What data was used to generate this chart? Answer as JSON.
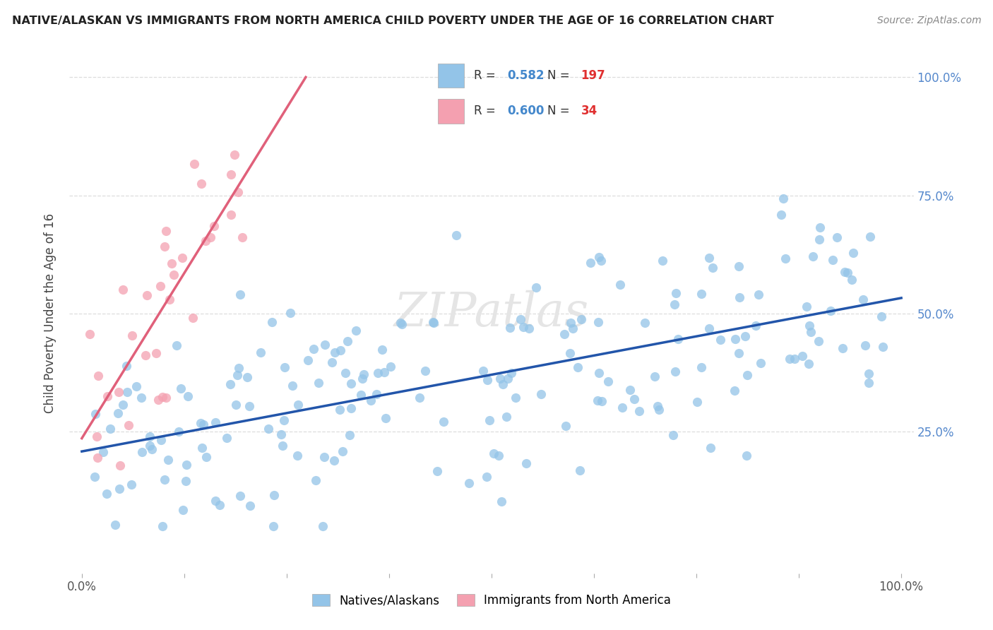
{
  "title": "NATIVE/ALASKAN VS IMMIGRANTS FROM NORTH AMERICA CHILD POVERTY UNDER THE AGE OF 16 CORRELATION CHART",
  "source": "Source: ZipAtlas.com",
  "ylabel": "Child Poverty Under the Age of 16",
  "legend_blue_R": "0.582",
  "legend_blue_N": "197",
  "legend_pink_R": "0.600",
  "legend_pink_N": "34",
  "legend_blue_label": "Natives/Alaskans",
  "legend_pink_label": "Immigrants from North America",
  "blue_scatter_color": "#93C4E8",
  "pink_scatter_color": "#F4A0B0",
  "blue_line_color": "#2255AA",
  "pink_line_color": "#E0607A",
  "grid_color": "#DDDDDD",
  "watermark_text": "ZIPatlas",
  "watermark_color": "#E5E5E5",
  "right_axis_color": "#5588CC",
  "title_color": "#222222",
  "source_color": "#888888",
  "ylabel_color": "#444444",
  "x_min": 0,
  "x_max": 100,
  "y_min": 0,
  "y_max": 100,
  "blue_scatter_seed": 42,
  "pink_scatter_seed": 7,
  "blue_n": 197,
  "pink_n": 34,
  "blue_R": 0.582,
  "pink_R": 0.6
}
